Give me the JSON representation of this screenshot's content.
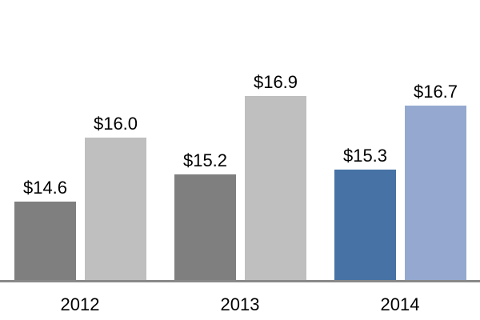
{
  "chart_data": {
    "type": "bar",
    "title": "",
    "categories": [
      "2012",
      "2013",
      "2014"
    ],
    "series": [
      {
        "name": "series-1",
        "values": [
          14.6,
          15.2,
          15.3
        ],
        "labels": [
          "$14.6",
          "$15.2",
          "$15.3"
        ],
        "colors": [
          "#7F7F7F",
          "#7F7F7F",
          "#4672A5"
        ]
      },
      {
        "name": "series-2",
        "values": [
          16.0,
          16.9,
          16.7
        ],
        "labels": [
          "$16.0",
          "$16.9",
          "$16.7"
        ],
        "colors": [
          "#BFBFBF",
          "#BFBFBF",
          "#95A9D0"
        ]
      }
    ],
    "value_prefix": "$",
    "data_labels_visible": true,
    "legend": "none",
    "grid": false,
    "y_axis_visible": false,
    "x_axis_line_color": "#898989",
    "text_color": "#000000",
    "background_color": "#FFFFFF",
    "ylim": [
      12.9,
      19.0
    ]
  }
}
